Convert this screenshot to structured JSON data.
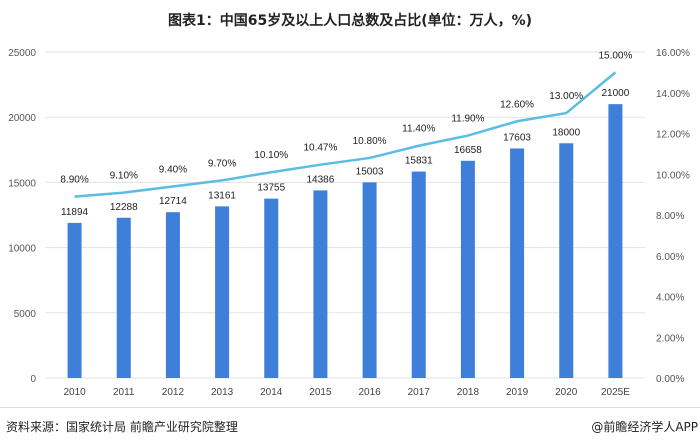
{
  "chart_data": {
    "type": "bar+line",
    "title": "图表1：中国65岁及以上人口总数及占比(单位：万人，%)",
    "categories": [
      "2010",
      "2011",
      "2012",
      "2013",
      "2014",
      "2015",
      "2016",
      "2017",
      "2018",
      "2019",
      "2020",
      "2025E"
    ],
    "series": [
      {
        "type": "bar",
        "axis": "left",
        "values": [
          11894,
          12288,
          12714,
          13161,
          13755,
          14386,
          15003,
          15831,
          16658,
          17603,
          18000,
          21000
        ],
        "labels": [
          "11894",
          "12288",
          "12714",
          "13161",
          "13755",
          "14386",
          "15003",
          "15831",
          "16658",
          "17603",
          "18000",
          "21000"
        ],
        "color": "#3d7fd9"
      },
      {
        "type": "line",
        "axis": "right",
        "values": [
          8.9,
          9.1,
          9.4,
          9.7,
          10.1,
          10.47,
          10.8,
          11.4,
          11.9,
          12.6,
          13.0,
          15.0
        ],
        "labels": [
          "8.90%",
          "9.10%",
          "9.40%",
          "9.70%",
          "10.10%",
          "10.47%",
          "10.80%",
          "11.40%",
          "11.90%",
          "12.60%",
          "13.00%",
          "15.00%"
        ],
        "color": "#5bbde4"
      }
    ],
    "left_axis": {
      "range": [
        0,
        25000
      ],
      "ticks": [
        "0",
        "5000",
        "10000",
        "15000",
        "20000",
        "25000"
      ]
    },
    "right_axis": {
      "range": [
        0,
        16
      ],
      "ticks": [
        "0.00%",
        "2.00%",
        "4.00%",
        "6.00%",
        "8.00%",
        "10.00%",
        "12.00%",
        "14.00%",
        "16.00%"
      ]
    },
    "grid": true,
    "legend": "none"
  },
  "footer": {
    "source": "资料来源：国家统计局 前瞻产业研究院整理",
    "credit": "@前瞻经济学人APP"
  }
}
